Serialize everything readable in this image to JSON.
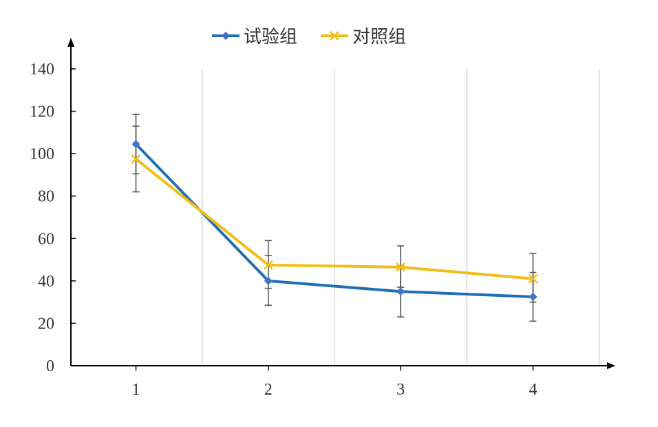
{
  "chart_data": {
    "type": "line",
    "categories": [
      "1",
      "2",
      "3",
      "4"
    ],
    "ylim": [
      0,
      140
    ],
    "yticks": [
      "0",
      "20",
      "40",
      "60",
      "80",
      "100",
      "120",
      "140"
    ],
    "grid": "vertical",
    "legend_position": "top-center",
    "error_bars": true,
    "series": [
      {
        "name": "试验组",
        "color": "#1f6fb2",
        "marker": "diamond",
        "marker_color": "#4472c4",
        "values": [
          104.5,
          40,
          35,
          32.5
        ],
        "err_low": [
          82,
          28.5,
          23,
          21
        ],
        "err_high": [
          113,
          52,
          47,
          44
        ]
      },
      {
        "name": "对照组",
        "color": "#f0be16",
        "marker": "x",
        "values": [
          97.5,
          47.5,
          46.5,
          41
        ],
        "err_low": [
          90.5,
          36.5,
          37,
          30
        ],
        "err_high": [
          118.5,
          59,
          56.5,
          53
        ]
      }
    ]
  }
}
